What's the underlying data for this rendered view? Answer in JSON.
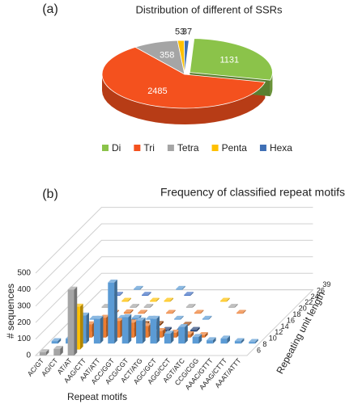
{
  "chart_data": [
    {
      "type": "pie",
      "panel": "(a)",
      "title": "Distribution of different of SSRs",
      "categories": [
        "Di",
        "Tri",
        "Tetra",
        "Penta",
        "Hexa"
      ],
      "values": [
        1131,
        2485,
        358,
        53,
        37
      ],
      "colors": [
        "#8bc34a",
        "#f4511e",
        "#a5a5a5",
        "#ffc000",
        "#3f6fb5"
      ]
    },
    {
      "type": "bar3d",
      "panel": "(b)",
      "title": "Frequency of classified repeat motifs",
      "xlabel": "Repeat motifs",
      "ylabel": "# sequences",
      "zlabel": "Repeating unit length",
      "categories": [
        "AC/GT",
        "AG/CT",
        "AT/AT",
        "AAG/CTT",
        "AAT/ATT",
        "ACC/GGT",
        "ACG/CGT",
        "ACT/ATG",
        "AGC/GCT",
        "AGG/CCT",
        "AGT/ATC",
        "CCG/CGG",
        "AAAC/GTTT",
        "AAAG/CTTT",
        "AAAT/ATTT"
      ],
      "ylim": [
        0,
        500
      ],
      "yticks": [
        0,
        100,
        200,
        300,
        400,
        500
      ],
      "grid": true,
      "series": [
        {
          "name": "6",
          "color": "#a5a5a5",
          "values": [
            20,
            40,
            400,
            null,
            null,
            null,
            null,
            null,
            null,
            null,
            null,
            null,
            null,
            null,
            null
          ]
        },
        {
          "name": "8",
          "color": "#ffc000",
          "values": [
            null,
            null,
            260,
            null,
            null,
            null,
            null,
            null,
            null,
            null,
            null,
            null,
            null,
            null,
            null
          ]
        },
        {
          "name": "10",
          "color": "#5b9bd5",
          "values": [
            15,
            30,
            170,
            150,
            370,
            160,
            140,
            150,
            60,
            100,
            40,
            20,
            30,
            15,
            10
          ]
        },
        {
          "name": "12",
          "color": "#ed7d31",
          "values": [
            null,
            null,
            80,
            120,
            100,
            90,
            70,
            40,
            30,
            20,
            15,
            null,
            null,
            null,
            null
          ]
        },
        {
          "name": "14",
          "color": "#264478",
          "values": [
            null,
            10,
            30,
            40,
            30,
            20,
            25,
            10,
            10,
            10,
            null,
            null,
            null,
            null,
            null
          ]
        },
        {
          "name": "16",
          "color": "#9e480e",
          "values": [
            null,
            null,
            15,
            20,
            20,
            10,
            10,
            null,
            5,
            null,
            null,
            null,
            null,
            null,
            null
          ]
        },
        {
          "name": "18",
          "color": "#5b9bd5",
          "values": [
            null,
            5,
            10,
            10,
            10,
            5,
            null,
            5,
            null,
            5,
            null,
            null,
            null,
            null,
            null
          ]
        },
        {
          "name": "20",
          "color": "#ed7d31",
          "values": [
            null,
            null,
            5,
            8,
            5,
            null,
            5,
            null,
            5,
            null,
            null,
            5,
            null,
            null,
            null
          ]
        },
        {
          "name": "22",
          "color": "#a5a5a5",
          "values": [
            null,
            5,
            null,
            5,
            5,
            null,
            null,
            5,
            null,
            null,
            5,
            null,
            null,
            null,
            null
          ]
        },
        {
          "name": "24",
          "color": "#ffc000",
          "values": [
            null,
            null,
            5,
            null,
            5,
            5,
            null,
            null,
            null,
            5,
            null,
            null,
            null,
            null,
            null
          ]
        },
        {
          "name": "26",
          "color": "#4472c4",
          "values": [
            null,
            5,
            null,
            5,
            null,
            null,
            5,
            null,
            null,
            null,
            null,
            null,
            null,
            null,
            null
          ]
        },
        {
          "name": "39",
          "color": "#5b9bd5",
          "values": [
            null,
            null,
            5,
            null,
            null,
            5,
            null,
            null,
            null,
            null,
            null,
            null,
            null,
            null,
            null
          ]
        }
      ]
    }
  ]
}
